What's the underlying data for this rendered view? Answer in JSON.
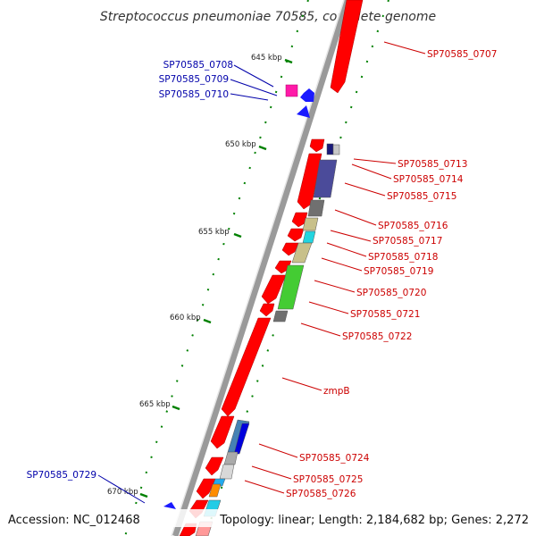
{
  "title": "Streptococcus pneumoniae 70585, complete genome",
  "footer": {
    "accession": "Accession: NC_012468",
    "topology": "Topology: linear; Length: 2,184,682 bp; Genes: 2,272"
  },
  "kbp_ticks": [
    "645 kbp",
    "650 kbp",
    "655 kbp",
    "660 kbp",
    "665 kbp",
    "670 kbp"
  ],
  "gene_labels": {
    "reverse": [
      "SP70585_0708",
      "SP70585_0709",
      "SP70585_0710",
      "SP70585_0729"
    ],
    "forward": [
      "SP70585_0707",
      "SP70585_0713",
      "SP70585_0714",
      "SP70585_0715",
      "SP70585_0716",
      "SP70585_0717",
      "SP70585_0718",
      "SP70585_0719",
      "SP70585_0720",
      "SP70585_0721",
      "SP70585_0722",
      "zmpB",
      "SP70585_0724",
      "SP70585_0725",
      "SP70585_0726"
    ]
  },
  "colors": {
    "forward_label": "#cc0000",
    "reverse_label": "#0000aa",
    "gene_red": "#ff0000",
    "backbone": "#888888",
    "tick_green": "#008000"
  }
}
